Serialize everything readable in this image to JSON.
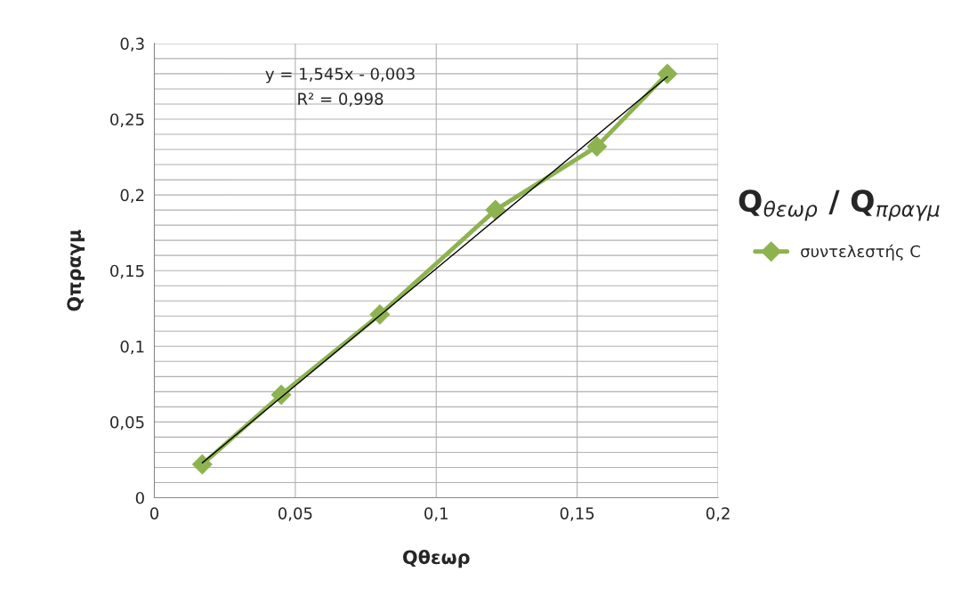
{
  "chart_data": {
    "type": "line",
    "title": "Q$_{θεωρ}$ / Q$_{πραγμ}$",
    "xlabel": "Qθεωρ",
    "ylabel": "Qπραγμ",
    "series": [
      {
        "name": "συντελεστής C",
        "color": "#8db350",
        "marker": "diamond",
        "x": [
          0.017,
          0.045,
          0.08,
          0.121,
          0.157,
          0.182
        ],
        "values": [
          0.022,
          0.068,
          0.121,
          0.19,
          0.232,
          0.28
        ]
      },
      {
        "type": "line",
        "color": "#000000",
        "marker": "none",
        "x": [
          0.017,
          0.182
        ],
        "values": [
          0.023,
          0.278
        ]
      }
    ],
    "annotations": [
      "y = 1,545x - 0,003",
      "R² = 0,998"
    ],
    "xlim": [
      0,
      0.2
    ],
    "ylim": [
      0,
      0.3
    ],
    "xticks": [
      0,
      {
        "value": 0.05,
        "label": "0,05"
      },
      {
        "value": 0.1,
        "label": "0,1"
      },
      {
        "value": 0.15,
        "label": "0,15"
      },
      {
        "value": 0.2,
        "label": "0,2"
      }
    ],
    "yticks": [
      0,
      {
        "value": 0.01,
        "label": null
      },
      {
        "value": 0.02,
        "label": null
      },
      {
        "value": 0.03,
        "label": null
      },
      {
        "value": 0.04,
        "label": null
      },
      {
        "value": 0.05,
        "label": "0,05"
      },
      {
        "value": 0.06,
        "label": null
      },
      {
        "value": 0.07,
        "label": null
      },
      {
        "value": 0.08,
        "label": null
      },
      {
        "value": 0.09,
        "label": null
      },
      {
        "value": 0.1,
        "label": "0,1"
      },
      {
        "value": 0.11,
        "label": null
      },
      {
        "value": 0.12,
        "label": null
      },
      {
        "value": 0.13,
        "label": null
      },
      {
        "value": 0.14,
        "label": null
      },
      {
        "value": 0.15,
        "label": "0,15"
      },
      {
        "value": 0.16,
        "label": null
      },
      {
        "value": 0.17,
        "label": null
      },
      {
        "value": 0.18,
        "label": null
      },
      {
        "value": 0.19,
        "label": null
      },
      {
        "value": 0.2,
        "label": "0,2"
      },
      {
        "value": 0.21,
        "label": null
      },
      {
        "value": 0.22,
        "label": null
      },
      {
        "value": 0.23,
        "label": null
      },
      {
        "value": 0.24,
        "label": null
      },
      {
        "value": 0.25,
        "label": "0,25"
      },
      {
        "value": 0.26,
        "label": null
      },
      {
        "value": 0.27,
        "label": null
      },
      {
        "value": 0.28,
        "label": null
      },
      {
        "value": 0.29,
        "label": null
      },
      {
        "value": 0.3,
        "label": "0,3"
      }
    ],
    "grid": true,
    "legend": "right"
  }
}
